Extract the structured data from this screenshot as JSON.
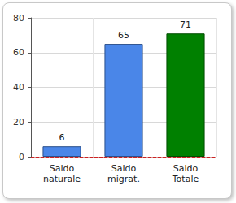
{
  "chart_data": {
    "type": "bar",
    "categories": [
      "Saldo\nnaturale",
      "Saldo\nmigrat.",
      "Saldo\nTotale"
    ],
    "values": [
      6,
      65,
      71
    ],
    "colors": [
      "#4a86e8",
      "#4a86e8",
      "#008000"
    ],
    "ylim": [
      0,
      80
    ],
    "yticks": [
      0,
      20,
      40,
      60,
      80
    ],
    "grid": true,
    "data_labels": true
  }
}
